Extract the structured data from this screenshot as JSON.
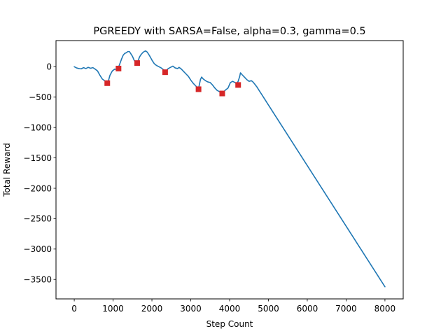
{
  "chart_data": {
    "type": "line",
    "title": "PGREEDY with SARSA=False, alpha=0.3, gamma=0.5",
    "xlabel": "Step Count",
    "ylabel": "Total Reward",
    "xlim": [
      -470,
      8470
    ],
    "ylim": [
      -3820,
      430
    ],
    "xticks": [
      0,
      1000,
      2000,
      3000,
      4000,
      5000,
      6000,
      7000,
      8000
    ],
    "yticks": [
      0,
      -500,
      -1000,
      -1500,
      -2000,
      -2500,
      -3000,
      -3500
    ],
    "grid": false,
    "series": [
      {
        "color": "#1f77b4",
        "points": [
          [
            0,
            0
          ],
          [
            60,
            -20
          ],
          [
            120,
            -30
          ],
          [
            180,
            -35
          ],
          [
            240,
            -15
          ],
          [
            300,
            -30
          ],
          [
            360,
            -10
          ],
          [
            420,
            -25
          ],
          [
            480,
            -15
          ],
          [
            540,
            -40
          ],
          [
            600,
            -70
          ],
          [
            660,
            -140
          ],
          [
            720,
            -200
          ],
          [
            780,
            -230
          ],
          [
            840,
            -250
          ],
          [
            880,
            -230
          ],
          [
            920,
            -140
          ],
          [
            980,
            -70
          ],
          [
            1040,
            -40
          ],
          [
            1100,
            -45
          ],
          [
            1140,
            -10
          ],
          [
            1180,
            60
          ],
          [
            1220,
            130
          ],
          [
            1260,
            190
          ],
          [
            1300,
            220
          ],
          [
            1340,
            230
          ],
          [
            1380,
            250
          ],
          [
            1420,
            250
          ],
          [
            1460,
            210
          ],
          [
            1500,
            170
          ],
          [
            1540,
            110
          ],
          [
            1580,
            70
          ],
          [
            1610,
            60
          ],
          [
            1640,
            90
          ],
          [
            1680,
            160
          ],
          [
            1720,
            200
          ],
          [
            1760,
            230
          ],
          [
            1800,
            250
          ],
          [
            1840,
            260
          ],
          [
            1880,
            240
          ],
          [
            1940,
            180
          ],
          [
            2000,
            110
          ],
          [
            2060,
            50
          ],
          [
            2120,
            20
          ],
          [
            2180,
            0
          ],
          [
            2240,
            -20
          ],
          [
            2300,
            -50
          ],
          [
            2340,
            -80
          ],
          [
            2380,
            -60
          ],
          [
            2420,
            -30
          ],
          [
            2480,
            -10
          ],
          [
            2540,
            10
          ],
          [
            2600,
            -20
          ],
          [
            2660,
            -30
          ],
          [
            2700,
            -10
          ],
          [
            2760,
            -40
          ],
          [
            2820,
            -80
          ],
          [
            2880,
            -120
          ],
          [
            2940,
            -160
          ],
          [
            3000,
            -220
          ],
          [
            3060,
            -270
          ],
          [
            3120,
            -310
          ],
          [
            3180,
            -350
          ],
          [
            3210,
            -330
          ],
          [
            3250,
            -210
          ],
          [
            3280,
            -170
          ],
          [
            3320,
            -200
          ],
          [
            3380,
            -230
          ],
          [
            3440,
            -250
          ],
          [
            3500,
            -260
          ],
          [
            3560,
            -300
          ],
          [
            3620,
            -350
          ],
          [
            3680,
            -390
          ],
          [
            3740,
            -410
          ],
          [
            3800,
            -420
          ],
          [
            3850,
            -410
          ],
          [
            3900,
            -380
          ],
          [
            3960,
            -350
          ],
          [
            4020,
            -260
          ],
          [
            4080,
            -240
          ],
          [
            4140,
            -260
          ],
          [
            4180,
            -280
          ],
          [
            4220,
            -240
          ],
          [
            4260,
            -160
          ],
          [
            4280,
            -100
          ],
          [
            4320,
            -130
          ],
          [
            4380,
            -170
          ],
          [
            4440,
            -210
          ],
          [
            4500,
            -240
          ],
          [
            4560,
            -230
          ],
          [
            4600,
            -250
          ],
          [
            4640,
            -280
          ],
          [
            4700,
            -330
          ],
          [
            8000,
            -3620
          ]
        ]
      }
    ],
    "markers": {
      "color": "#d62728",
      "points": [
        [
          850,
          -270
        ],
        [
          1140,
          -30
        ],
        [
          1620,
          60
        ],
        [
          2340,
          -90
        ],
        [
          3200,
          -370
        ],
        [
          3810,
          -440
        ],
        [
          4220,
          -300
        ]
      ]
    }
  }
}
